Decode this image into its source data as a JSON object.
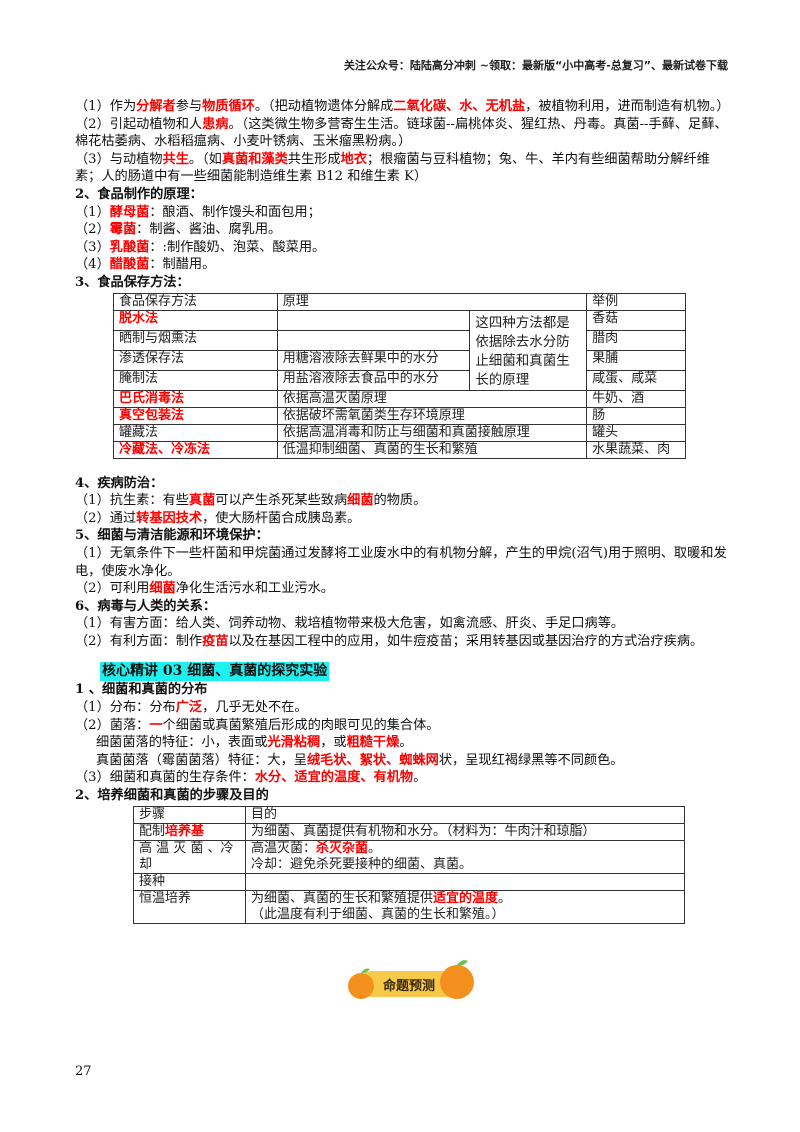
{
  "header": "关注公众号：陆陆高分冲刺  ~领取：最新版“小中高考-总复习”、最新试卷下载",
  "paragraphs_a": [
    {
      "cls": "p",
      "segs": [
        {
          "t": "（1）作为"
        },
        {
          "t": "分解者",
          "r": 1
        },
        {
          "t": "参与"
        },
        {
          "t": "物质循环",
          "r": 1
        },
        {
          "t": "。（把动植物遗体分解成"
        },
        {
          "t": "二氧化碳、水、无机盐",
          "r": 1
        },
        {
          "t": "，被植物利用，进而制造有机物。）"
        }
      ]
    },
    {
      "cls": "p",
      "segs": [
        {
          "t": "（2）引起动植物和人"
        },
        {
          "t": "患病",
          "r": 1
        },
        {
          "t": "。（这类微生物多营寄生生活。链球菌--扁桃体炎、猩红热、丹毒。真菌--手藓、足藓、棉花枯萎病、水稻稻瘟病、小麦叶锈病、玉米瘤黑粉病。）"
        }
      ]
    },
    {
      "cls": "p",
      "segs": [
        {
          "t": "（3）与动植物"
        },
        {
          "t": "共生",
          "r": 1
        },
        {
          "t": "。（如"
        },
        {
          "t": "真菌和藻类",
          "r": 1
        },
        {
          "t": "共生形成"
        },
        {
          "t": "地衣",
          "r": 1
        },
        {
          "t": "；根瘤菌与豆科植物；兔、牛、羊内有些细菌帮助分解纤维素；人的肠道中有一些细菌能制造维生素 B12 和维生素 K）"
        }
      ]
    },
    {
      "cls": "p h",
      "segs": [
        {
          "t": "2、食品制作的原理："
        }
      ]
    },
    {
      "cls": "p",
      "segs": [
        {
          "t": "（1）"
        },
        {
          "t": "酵母菌",
          "r": 1
        },
        {
          "t": "：酿酒、制作馒头和面包用；"
        }
      ]
    },
    {
      "cls": "p",
      "segs": [
        {
          "t": "（2）"
        },
        {
          "t": "霉菌",
          "r": 1
        },
        {
          "t": "：制酱、酱油、腐乳用。"
        }
      ]
    },
    {
      "cls": "p",
      "segs": [
        {
          "t": "（3）"
        },
        {
          "t": "乳酸菌",
          "r": 1
        },
        {
          "t": "：:制作酸奶、泡菜、酸菜用。"
        }
      ]
    },
    {
      "cls": "p",
      "segs": [
        {
          "t": "（4）"
        },
        {
          "t": "醋酸菌",
          "r": 1
        },
        {
          "t": "：制醋用。"
        }
      ]
    },
    {
      "cls": "p h",
      "segs": [
        {
          "t": "3、食品保存方法："
        }
      ]
    }
  ],
  "preservation_table": {
    "headers": [
      "食品保存方法",
      "原理",
      "举例"
    ],
    "shared_principle": "这四种方法都是依据除去水分防止细菌和真菌生长的原理",
    "rows": [
      {
        "method": "脱水法",
        "red": true,
        "principle": "",
        "example": "香菇"
      },
      {
        "method": "晒制与烟熏法",
        "red": false,
        "principle": "",
        "example": "腊肉"
      },
      {
        "method": "渗透保存法",
        "red": false,
        "principle": "用糖溶液除去鲜果中的水分",
        "example": "果脯"
      },
      {
        "method": "腌制法",
        "red": false,
        "principle": "用盐溶液除去食品中的水分",
        "example": "咸蛋、咸菜"
      },
      {
        "method": "巴氏消毒法",
        "red": true,
        "principle": "依据高温灭菌原理",
        "example": "牛奶、酒"
      },
      {
        "method": "真空包装法",
        "red": true,
        "principle": "依据破坏需氧菌类生存环境原理",
        "example": "肠"
      },
      {
        "method": "罐藏法",
        "red": false,
        "principle": "依据高温消毒和防止与细菌和真菌接触原理",
        "example": "罐头"
      },
      {
        "method": "冷藏法、冷冻法",
        "red": true,
        "principle": "低温抑制细菌、真菌的生长和繁殖",
        "example": "水果蔬菜、肉"
      }
    ]
  },
  "paragraphs_b": [
    {
      "cls": "p h",
      "segs": [
        {
          "t": "4、疾病防治："
        }
      ]
    },
    {
      "cls": "p",
      "segs": [
        {
          "t": "（1）抗生素：有些"
        },
        {
          "t": "真菌",
          "r": 1
        },
        {
          "t": "可以产生杀死某些致病"
        },
        {
          "t": "细菌",
          "r": 1
        },
        {
          "t": "的物质。"
        }
      ]
    },
    {
      "cls": "p",
      "segs": [
        {
          "t": "（2）通过"
        },
        {
          "t": "转基因技术",
          "r": 1
        },
        {
          "t": "，使大肠杆菌合成胰岛素。"
        }
      ]
    },
    {
      "cls": "p h",
      "segs": [
        {
          "t": "5、细菌与清洁能源和环境保护："
        }
      ]
    },
    {
      "cls": "p",
      "segs": [
        {
          "t": "（1）无氧条件下一些杆菌和甲烷菌通过发酵将工业废水中的有机物分解，产生的甲烷(沼气)用于照明、取暖和发电，使废水净化。"
        }
      ]
    },
    {
      "cls": "p",
      "segs": [
        {
          "t": "（2）可利用"
        },
        {
          "t": "细菌",
          "r": 1
        },
        {
          "t": "净化生活污水和工业污水。"
        }
      ]
    },
    {
      "cls": "p h",
      "segs": [
        {
          "t": "6、病毒与人类的关系："
        }
      ]
    },
    {
      "cls": "p",
      "segs": [
        {
          "t": "（1）有害方面：给人类、饲养动物、栽培植物带来极大危害，如禽流感、肝炎、手足口病等。"
        }
      ]
    },
    {
      "cls": "p",
      "segs": [
        {
          "t": "（2）有利方面：制作"
        },
        {
          "t": "疫苗",
          "r": 1
        },
        {
          "t": "以及在基因工程中的应用，如牛痘疫苗；采用转基因或基因治疗的方式治疗疾病。"
        }
      ]
    }
  ],
  "section_title": "核心精讲 03  细菌、真菌的探究实验",
  "paragraphs_c": [
    {
      "cls": "p h",
      "segs": [
        {
          "t": "1 、细菌和真菌的分布"
        }
      ]
    },
    {
      "cls": "p",
      "segs": [
        {
          "t": "（1）分布：分布"
        },
        {
          "t": "广泛",
          "r": 1
        },
        {
          "t": "，几乎无处不在。"
        }
      ]
    },
    {
      "cls": "p",
      "segs": [
        {
          "t": "（2）菌落："
        },
        {
          "t": "一",
          "r": 1
        },
        {
          "t": "个细菌或真菌繁殖后形成的肉眼可见的集合体。"
        }
      ]
    },
    {
      "cls": "p ind",
      "segs": [
        {
          "t": "细菌菌落的特征：小，表面或"
        },
        {
          "t": "光滑粘稠",
          "r": 1
        },
        {
          "t": "，或"
        },
        {
          "t": "粗糙干燥",
          "r": 1
        },
        {
          "t": "。"
        }
      ]
    },
    {
      "cls": "p ind",
      "segs": [
        {
          "t": "真菌菌落（霉菌菌落）特征：大，呈"
        },
        {
          "t": "绒毛状、絮状、蜘蛛网",
          "r": 1
        },
        {
          "t": "状，呈现红褐绿黑等不同颜色。"
        }
      ]
    },
    {
      "cls": "p",
      "segs": [
        {
          "t": "（3）细菌和真菌的生存条件："
        },
        {
          "t": "水分、适宜的温度、有机物",
          "r": 1
        },
        {
          "t": "。"
        }
      ]
    },
    {
      "cls": "p h",
      "segs": [
        {
          "t": "2、培养细菌和真菌的步骤及目的"
        }
      ]
    }
  ],
  "culture_table": {
    "headers": [
      "步骤",
      "目的"
    ],
    "rows": [
      {
        "step": [
          {
            "t": "配制"
          },
          {
            "t": "培养基",
            "r": 1
          }
        ],
        "purpose": [
          [
            {
              "t": "为细菌、真菌提供有机物和水分。（材料为：牛肉汁和琼脂）"
            }
          ]
        ]
      },
      {
        "step": [
          {
            "t": "高 温 灭 菌 、冷 却"
          }
        ],
        "purpose": [
          [
            {
              "t": "高温灭菌："
            },
            {
              "t": "杀灭杂菌",
              "r": 1
            },
            {
              "t": "。"
            }
          ],
          [
            {
              "t": "冷却：避免杀死要接种的细菌、真菌。"
            }
          ]
        ]
      },
      {
        "step": [
          {
            "t": "接种"
          }
        ],
        "purpose": []
      },
      {
        "step": [
          {
            "t": "恒温培养"
          }
        ],
        "purpose": [
          [
            {
              "t": "为细菌、真菌的生长和繁殖提供"
            },
            {
              "t": "适宜的温度",
              "r": 1
            },
            {
              "t": "。"
            }
          ],
          [
            {
              "t": "（此温度有利于细菌、真菌的生长和繁殖。）"
            }
          ]
        ]
      }
    ]
  },
  "badge": {
    "label": "命题预测",
    "icon": "orange-icon",
    "colors": {
      "banner": "#f7c948",
      "orange": "#f4901e",
      "leaf": "#6cbf4a"
    }
  },
  "page_number": "27",
  "colors": {
    "emphasis": "#ff0000",
    "section_highlight": "#1ef0f0"
  }
}
